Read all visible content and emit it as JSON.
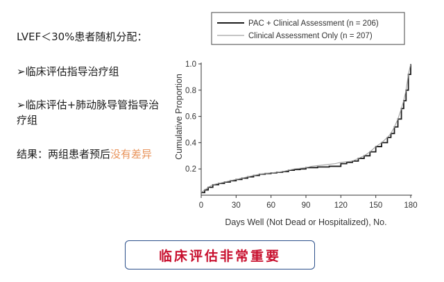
{
  "left_panel": {
    "randomization": "LVEF＜30%患者随机分配：",
    "group1": "➢临床评估指导治疗组",
    "group2": "➢临床评估+肺动脉导管指导治疗组",
    "result_prefix": "结果：两组患者预后",
    "result_highlight": "没有差异"
  },
  "banner": {
    "text": "临床评估非常重要"
  },
  "colors": {
    "accent": "#e8935a",
    "banner_text": "#c8102e",
    "banner_border": "#2b4f8a",
    "series_pac": "#1a1a1a",
    "series_clinical": "#a0a0a0"
  },
  "chart_data": {
    "type": "line",
    "xlabel": "Days Well (Not Dead or Hospitalized), No.",
    "ylabel": "Cumulative Proportion",
    "xlim": [
      0,
      180
    ],
    "ylim": [
      0,
      1.0
    ],
    "x_ticks": [
      0,
      30,
      60,
      90,
      120,
      150,
      180
    ],
    "y_ticks": [
      0.2,
      0.4,
      0.6,
      0.8,
      1.0
    ],
    "legend_position": "top-right",
    "series": [
      {
        "name": "PAC + Clinical Assessment (n = 206)",
        "style": "step-dark",
        "x": [
          0,
          3,
          6,
          10,
          15,
          20,
          25,
          30,
          35,
          40,
          45,
          50,
          55,
          60,
          65,
          70,
          75,
          80,
          85,
          90,
          95,
          100,
          105,
          110,
          115,
          120,
          125,
          130,
          135,
          140,
          145,
          150,
          155,
          160,
          163,
          166,
          169,
          172,
          174,
          176,
          178,
          180
        ],
        "y": [
          0.02,
          0.04,
          0.06,
          0.08,
          0.09,
          0.1,
          0.11,
          0.12,
          0.13,
          0.14,
          0.15,
          0.16,
          0.165,
          0.17,
          0.175,
          0.18,
          0.19,
          0.195,
          0.2,
          0.21,
          0.21,
          0.215,
          0.215,
          0.22,
          0.22,
          0.24,
          0.25,
          0.26,
          0.28,
          0.3,
          0.33,
          0.37,
          0.4,
          0.44,
          0.47,
          0.52,
          0.58,
          0.66,
          0.72,
          0.8,
          0.92,
          1.0
        ]
      },
      {
        "name": "Clinical Assessment Only (n = 207)",
        "style": "line-light",
        "x": [
          0,
          3,
          6,
          10,
          15,
          20,
          25,
          30,
          35,
          40,
          45,
          50,
          55,
          60,
          65,
          70,
          75,
          80,
          85,
          90,
          95,
          100,
          105,
          110,
          115,
          120,
          125,
          130,
          135,
          140,
          145,
          150,
          155,
          160,
          163,
          166,
          169,
          172,
          174,
          176,
          178,
          180
        ],
        "y": [
          0.02,
          0.04,
          0.06,
          0.08,
          0.09,
          0.1,
          0.11,
          0.12,
          0.13,
          0.14,
          0.15,
          0.16,
          0.165,
          0.17,
          0.175,
          0.18,
          0.19,
          0.2,
          0.205,
          0.21,
          0.22,
          0.225,
          0.23,
          0.235,
          0.24,
          0.25,
          0.255,
          0.26,
          0.28,
          0.3,
          0.33,
          0.37,
          0.4,
          0.44,
          0.47,
          0.52,
          0.58,
          0.66,
          0.72,
          0.8,
          0.92,
          1.0
        ]
      }
    ]
  }
}
